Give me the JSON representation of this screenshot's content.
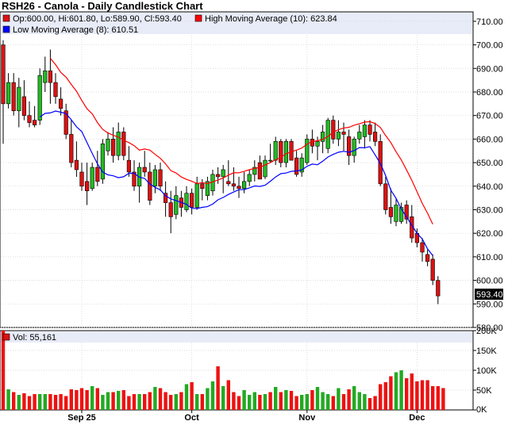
{
  "title": "RSH26 - Canola - Daily Candlestick Chart",
  "colors": {
    "up": "#22bb22",
    "down": "#dd1111",
    "high_ma": "#ff0000",
    "low_ma": "#0000ff",
    "vol_up": "#22aa22",
    "vol_down": "#ee1111",
    "legend_bg": "#e8ecf8",
    "grid": "#d0d0d0",
    "last_price_bg": "#000000"
  },
  "legend": {
    "ohlc": "Op:600.00, Hi:601.80, Lo:589.90, Cl:593.40",
    "high_ma": "High Moving Average (10): 623.84",
    "low_ma": "Low Moving Average (8): 610.51",
    "volume": "Vol: 55,161"
  },
  "last_price_label": "593.40",
  "chart_data": [
    {
      "type": "candlestick",
      "title": "RSH26 - Canola - Daily Candlestick Chart",
      "ylim": [
        580,
        714
      ],
      "yticks": [
        "580.00",
        "590.00",
        "600.00",
        "610.00",
        "620.00",
        "630.00",
        "640.00",
        "650.00",
        "660.00",
        "670.00",
        "680.00",
        "690.00",
        "700.00",
        "710.00"
      ],
      "x_labels": [
        {
          "label": "Sep 25",
          "index": 15
        },
        {
          "label": "Oct",
          "index": 36
        },
        {
          "label": "Nov",
          "index": 58
        },
        {
          "label": "Dec",
          "index": 79
        }
      ],
      "grid": true,
      "candles": [
        {
          "o": 700,
          "h": 702,
          "l": 658,
          "c": 675
        },
        {
          "o": 675,
          "h": 688,
          "l": 673,
          "c": 684
        },
        {
          "o": 684,
          "h": 688,
          "l": 670,
          "c": 672
        },
        {
          "o": 672,
          "h": 686,
          "l": 665,
          "c": 682
        },
        {
          "o": 678,
          "h": 685,
          "l": 668,
          "c": 670
        },
        {
          "o": 670,
          "h": 676,
          "l": 665,
          "c": 667
        },
        {
          "o": 668,
          "h": 674,
          "l": 665,
          "c": 666
        },
        {
          "o": 668,
          "h": 690,
          "l": 666,
          "c": 687
        },
        {
          "o": 684,
          "h": 695,
          "l": 680,
          "c": 689
        },
        {
          "o": 689,
          "h": 698,
          "l": 675,
          "c": 684
        },
        {
          "o": 684,
          "h": 688,
          "l": 675,
          "c": 678
        },
        {
          "o": 677,
          "h": 682,
          "l": 670,
          "c": 673
        },
        {
          "o": 672,
          "h": 675,
          "l": 660,
          "c": 662
        },
        {
          "o": 662,
          "h": 668,
          "l": 648,
          "c": 650
        },
        {
          "o": 651,
          "h": 659,
          "l": 644,
          "c": 647
        },
        {
          "o": 646,
          "h": 650,
          "l": 638,
          "c": 640
        },
        {
          "o": 642,
          "h": 650,
          "l": 632,
          "c": 638
        },
        {
          "o": 639,
          "h": 650,
          "l": 638,
          "c": 648
        },
        {
          "o": 648,
          "h": 655,
          "l": 640,
          "c": 642
        },
        {
          "o": 643,
          "h": 660,
          "l": 641,
          "c": 658
        },
        {
          "o": 655,
          "h": 663,
          "l": 653,
          "c": 660
        },
        {
          "o": 660,
          "h": 665,
          "l": 650,
          "c": 653
        },
        {
          "o": 653,
          "h": 667,
          "l": 651,
          "c": 663
        },
        {
          "o": 663,
          "h": 665,
          "l": 651,
          "c": 653
        },
        {
          "o": 651,
          "h": 657,
          "l": 644,
          "c": 646
        },
        {
          "o": 646,
          "h": 651,
          "l": 638,
          "c": 640
        },
        {
          "o": 640,
          "h": 650,
          "l": 633,
          "c": 648
        },
        {
          "o": 648,
          "h": 655,
          "l": 644,
          "c": 646
        },
        {
          "o": 646,
          "h": 650,
          "l": 632,
          "c": 634
        },
        {
          "o": 640,
          "h": 649,
          "l": 637,
          "c": 647
        },
        {
          "o": 647,
          "h": 650,
          "l": 638,
          "c": 640
        },
        {
          "o": 637,
          "h": 642,
          "l": 627,
          "c": 633
        },
        {
          "o": 633,
          "h": 638,
          "l": 620,
          "c": 627
        },
        {
          "o": 628,
          "h": 640,
          "l": 626,
          "c": 636
        },
        {
          "o": 635,
          "h": 638,
          "l": 627,
          "c": 631
        },
        {
          "o": 630,
          "h": 640,
          "l": 629,
          "c": 637
        },
        {
          "o": 637,
          "h": 639,
          "l": 628,
          "c": 631
        },
        {
          "o": 631,
          "h": 644,
          "l": 630,
          "c": 641
        },
        {
          "o": 641,
          "h": 643,
          "l": 634,
          "c": 639
        },
        {
          "o": 636,
          "h": 644,
          "l": 634,
          "c": 642
        },
        {
          "o": 638,
          "h": 647,
          "l": 636,
          "c": 645
        },
        {
          "o": 645,
          "h": 648,
          "l": 641,
          "c": 644
        },
        {
          "o": 644,
          "h": 649,
          "l": 637,
          "c": 647
        },
        {
          "o": 642,
          "h": 651,
          "l": 640,
          "c": 641
        },
        {
          "o": 641,
          "h": 648,
          "l": 638,
          "c": 640
        },
        {
          "o": 640,
          "h": 644,
          "l": 635,
          "c": 639
        },
        {
          "o": 639,
          "h": 646,
          "l": 637,
          "c": 642
        },
        {
          "o": 642,
          "h": 647,
          "l": 640,
          "c": 645
        },
        {
          "o": 645,
          "h": 651,
          "l": 642,
          "c": 648
        },
        {
          "o": 650,
          "h": 653,
          "l": 644,
          "c": 643
        },
        {
          "o": 644,
          "h": 653,
          "l": 643,
          "c": 651
        },
        {
          "o": 651,
          "h": 658,
          "l": 650,
          "c": 651
        },
        {
          "o": 651,
          "h": 661,
          "l": 649,
          "c": 659
        },
        {
          "o": 659,
          "h": 660,
          "l": 648,
          "c": 650
        },
        {
          "o": 650,
          "h": 660,
          "l": 648,
          "c": 659
        },
        {
          "o": 659,
          "h": 660,
          "l": 651,
          "c": 651
        },
        {
          "o": 652,
          "h": 655,
          "l": 644,
          "c": 645
        },
        {
          "o": 646,
          "h": 654,
          "l": 644,
          "c": 652
        },
        {
          "o": 650,
          "h": 662,
          "l": 649,
          "c": 660
        },
        {
          "o": 660,
          "h": 664,
          "l": 654,
          "c": 657
        },
        {
          "o": 657,
          "h": 661,
          "l": 651,
          "c": 659
        },
        {
          "o": 659,
          "h": 666,
          "l": 654,
          "c": 663
        },
        {
          "o": 656,
          "h": 669,
          "l": 654,
          "c": 668
        },
        {
          "o": 668,
          "h": 670,
          "l": 658,
          "c": 660
        },
        {
          "o": 660,
          "h": 668,
          "l": 657,
          "c": 663
        },
        {
          "o": 663,
          "h": 667,
          "l": 655,
          "c": 662
        },
        {
          "o": 661,
          "h": 664,
          "l": 649,
          "c": 653
        },
        {
          "o": 653,
          "h": 661,
          "l": 650,
          "c": 660
        },
        {
          "o": 660,
          "h": 666,
          "l": 658,
          "c": 663
        },
        {
          "o": 661,
          "h": 668,
          "l": 656,
          "c": 666
        },
        {
          "o": 666,
          "h": 668,
          "l": 659,
          "c": 662
        },
        {
          "o": 663,
          "h": 667,
          "l": 657,
          "c": 659
        },
        {
          "o": 659,
          "h": 662,
          "l": 640,
          "c": 641
        },
        {
          "o": 641,
          "h": 644,
          "l": 628,
          "c": 630
        },
        {
          "o": 631,
          "h": 639,
          "l": 624,
          "c": 627
        },
        {
          "o": 625,
          "h": 635,
          "l": 623,
          "c": 632
        },
        {
          "o": 625,
          "h": 633,
          "l": 624,
          "c": 631
        },
        {
          "o": 632,
          "h": 634,
          "l": 624,
          "c": 626
        },
        {
          "o": 627,
          "h": 632,
          "l": 616,
          "c": 618
        },
        {
          "o": 620,
          "h": 622,
          "l": 614,
          "c": 616
        },
        {
          "o": 616,
          "h": 618,
          "l": 608,
          "c": 612
        },
        {
          "o": 611,
          "h": 613,
          "l": 606,
          "c": 608
        },
        {
          "o": 609,
          "h": 611,
          "l": 598,
          "c": 600
        },
        {
          "o": 600,
          "h": 601.8,
          "l": 589.9,
          "c": 593.4
        }
      ],
      "high_ma": [
        null,
        null,
        null,
        null,
        null,
        null,
        null,
        null,
        null,
        694.3,
        691.6,
        688.3,
        686.3,
        683.2,
        680.3,
        676.4,
        672.9,
        670.7,
        667.0,
        664.1,
        662.6,
        661.6,
        660.8,
        659.5,
        658.5,
        657.2,
        655.3,
        655.8,
        655.3,
        653.5,
        651.8,
        649.5,
        646.6,
        645.6,
        643.9,
        642.9,
        642.1,
        641.1,
        641.5,
        641.1,
        641.8,
        642.6,
        643.5,
        644.7,
        645.7,
        645.7,
        646.3,
        647.0,
        647.5,
        648.0,
        649.0,
        650.0,
        651.2,
        652.2,
        653.8,
        654.6,
        655.3,
        656.2,
        657.8,
        659.0,
        659.3,
        659.9,
        661.1,
        662.9,
        664.0,
        664.7,
        665.0,
        665.9,
        666.5,
        667.2,
        667.4,
        666.6,
        664.9,
        661.5,
        658.5,
        654.6,
        651.1,
        646.9,
        642.5,
        637.6,
        632.7,
        628.5,
        623.84
      ],
      "low_ma": [
        null,
        null,
        null,
        null,
        null,
        null,
        null,
        669.4,
        670.9,
        671.1,
        671.9,
        671.4,
        670.8,
        668.2,
        665.2,
        663.2,
        658.5,
        653.9,
        649.5,
        646.0,
        644.8,
        644.4,
        643.6,
        644.0,
        645.5,
        645.5,
        643.8,
        643.3,
        640.9,
        639.5,
        638.4,
        635.9,
        634.6,
        633.9,
        633.1,
        632.3,
        630.6,
        630.5,
        631.0,
        631.3,
        632.4,
        634.2,
        635.2,
        636.5,
        637.5,
        638.5,
        638.5,
        639.3,
        640.1,
        639.9,
        640.4,
        642.1,
        643.9,
        645.3,
        645.6,
        646.3,
        646.5,
        646.9,
        648.4,
        649.4,
        649.1,
        650.6,
        652.4,
        653.5,
        654.4,
        654.8,
        654.4,
        655.1,
        656.4,
        656.3,
        656.8,
        653.3,
        649.6,
        644.5,
        638.3,
        634.8,
        630.3,
        626.9,
        623.4,
        620.0,
        617.6,
        613.4,
        610.51
      ]
    },
    {
      "type": "bar",
      "title": "Vol: 55,161",
      "ylim": [
        0,
        200000
      ],
      "yticks": [
        "0K",
        "50K",
        "100K",
        "150K",
        "200K"
      ],
      "grid": true,
      "values": [
        200000,
        52000,
        45000,
        38000,
        42000,
        35000,
        40000,
        40000,
        40000,
        40000,
        38000,
        40000,
        35000,
        52000,
        50000,
        55000,
        50000,
        60000,
        55000,
        38000,
        45000,
        45000,
        48000,
        50000,
        35000,
        40000,
        40000,
        40000,
        45000,
        58000,
        55000,
        45000,
        38000,
        40000,
        45000,
        65000,
        70000,
        40000,
        40000,
        55000,
        72000,
        110000,
        60000,
        75000,
        45000,
        35000,
        50000,
        38000,
        45000,
        38000,
        40000,
        45000,
        58000,
        45000,
        50000,
        48000,
        35000,
        38000,
        40000,
        50000,
        58000,
        45000,
        40000,
        35000,
        55000,
        40000,
        52000,
        60000,
        45000,
        40000,
        30000,
        35000,
        65000,
        70000,
        85000,
        95000,
        100000,
        80000,
        92000,
        72000,
        75000,
        75000,
        60000,
        60000,
        55161
      ],
      "up": [
        false,
        true,
        false,
        true,
        false,
        false,
        false,
        true,
        true,
        false,
        false,
        false,
        false,
        false,
        false,
        false,
        false,
        true,
        false,
        true,
        true,
        false,
        true,
        false,
        false,
        false,
        true,
        false,
        false,
        true,
        false,
        false,
        false,
        true,
        false,
        true,
        false,
        true,
        false,
        true,
        true,
        false,
        true,
        false,
        false,
        false,
        true,
        true,
        true,
        false,
        true,
        false,
        true,
        false,
        true,
        false,
        false,
        true,
        true,
        false,
        true,
        true,
        true,
        false,
        true,
        false,
        false,
        true,
        true,
        true,
        false,
        false,
        false,
        false,
        false,
        true,
        true,
        false,
        false,
        false,
        false,
        false,
        false,
        false,
        false
      ]
    }
  ]
}
